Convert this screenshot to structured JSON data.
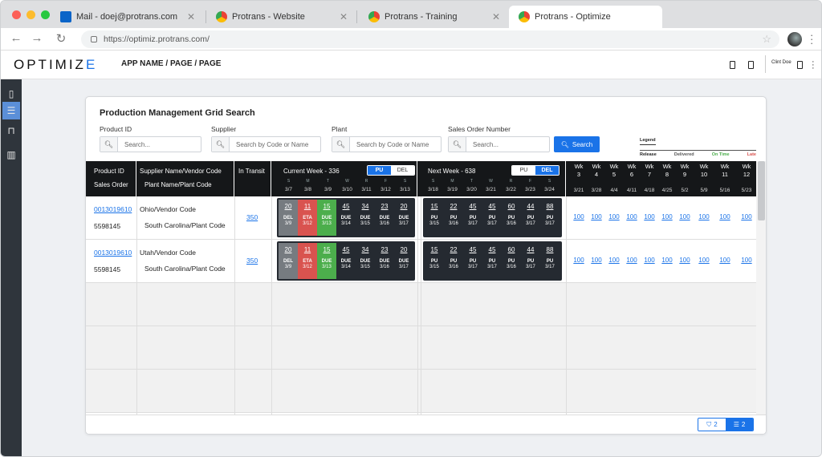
{
  "browser": {
    "tabs": [
      {
        "label": "Mail - doej@protrans.com",
        "icon": "outlook-icon"
      },
      {
        "label": "Protrans - Website",
        "icon": "chrome-icon"
      },
      {
        "label": "Protrans - Training",
        "icon": "chrome-icon"
      },
      {
        "label": "Protrans - Optimize",
        "icon": "chrome-icon",
        "active": true
      }
    ],
    "url": "https://optimiz.protrans.com/"
  },
  "app": {
    "logo": "OPTIMIZ",
    "logo_e": "E",
    "breadcrumb": "APP NAME / PAGE / PAGE",
    "user_name": "Clint Doe"
  },
  "page": {
    "title": "Production Management Grid Search",
    "filters": {
      "product_id": {
        "label": "Product ID",
        "placeholder": "Search..."
      },
      "supplier": {
        "label": "Supplier",
        "placeholder": "Search by Code or Name"
      },
      "plant": {
        "label": "Plant",
        "placeholder": "Search by Code or Name"
      },
      "sales_order": {
        "label": "Sales Order Number",
        "placeholder": "Search..."
      }
    },
    "search_button": "Search",
    "legend": {
      "title": "Legend",
      "release": "Release",
      "delivered": "Delivered",
      "on_time": "On Time",
      "late": "Late"
    }
  },
  "grid": {
    "headers": {
      "product_id": "Product ID",
      "sales_order": "Sales Order",
      "supplier": "Supplier Name/Vendor Code",
      "plant": "Plant Name/Plant Code",
      "in_transit": "In Transit",
      "current_week": "Current Week - 336",
      "next_week": "Next Week - 638",
      "pu": "PU",
      "del": "DEL"
    },
    "current_days": [
      {
        "day": "S",
        "date": "3/7"
      },
      {
        "day": "M",
        "date": "3/8"
      },
      {
        "day": "T",
        "date": "3/9"
      },
      {
        "day": "W",
        "date": "3/10"
      },
      {
        "day": "R",
        "date": "3/11"
      },
      {
        "day": "F",
        "date": "3/12"
      },
      {
        "day": "S",
        "date": "3/13"
      }
    ],
    "next_days": [
      {
        "day": "S",
        "date": "3/18"
      },
      {
        "day": "M",
        "date": "3/19"
      },
      {
        "day": "T",
        "date": "3/20"
      },
      {
        "day": "W",
        "date": "3/21"
      },
      {
        "day": "R",
        "date": "3/22"
      },
      {
        "day": "F",
        "date": "3/23"
      },
      {
        "day": "S",
        "date": "3/24"
      }
    ],
    "weeks": [
      {
        "w": "Wk",
        "n": "3",
        "date": "3/21"
      },
      {
        "w": "Wk",
        "n": "4",
        "date": "3/28"
      },
      {
        "w": "Wk",
        "n": "5",
        "date": "4/4"
      },
      {
        "w": "Wk",
        "n": "6",
        "date": "4/11"
      },
      {
        "w": "Wk",
        "n": "7",
        "date": "4/18"
      },
      {
        "w": "Wk",
        "n": "8",
        "date": "4/25"
      },
      {
        "w": "Wk",
        "n": "9",
        "date": "5/2"
      },
      {
        "w": "Wk",
        "n": "10",
        "date": "5/9"
      },
      {
        "w": "Wk",
        "n": "11",
        "date": "5/16"
      },
      {
        "w": "Wk",
        "n": "12",
        "date": "5/23"
      }
    ],
    "rows": [
      {
        "product_id": "0013019610",
        "sales_order": "5598145",
        "supplier": "Ohio/Vendor Code",
        "plant": "South Carolina/Plant Code",
        "in_transit": "350",
        "current": [
          {
            "n": "20",
            "s": "DEL",
            "d": "3/9",
            "c": "gray"
          },
          {
            "n": "11",
            "s": "ETA",
            "d": "3/12",
            "c": "red"
          },
          {
            "n": "15",
            "s": "DUE",
            "d": "3/13",
            "c": "green"
          },
          {
            "n": "45",
            "s": "DUE",
            "d": "3/14",
            "c": "dark"
          },
          {
            "n": "34",
            "s": "DUE",
            "d": "3/15",
            "c": "dark"
          },
          {
            "n": "23",
            "s": "DUE",
            "d": "3/16",
            "c": "dark"
          },
          {
            "n": "20",
            "s": "DUE",
            "d": "3/17",
            "c": "dark"
          }
        ],
        "next": [
          {
            "n": "15",
            "s": "PU",
            "d": "3/15"
          },
          {
            "n": "22",
            "s": "PU",
            "d": "3/16"
          },
          {
            "n": "45",
            "s": "PU",
            "d": "3/17"
          },
          {
            "n": "45",
            "s": "PU",
            "d": "3/17"
          },
          {
            "n": "60",
            "s": "PU",
            "d": "3/16"
          },
          {
            "n": "44",
            "s": "PU",
            "d": "3/17"
          },
          {
            "n": "88",
            "s": "PU",
            "d": "3/17"
          }
        ],
        "weeks": [
          "100",
          "100",
          "100",
          "100",
          "100",
          "100",
          "100",
          "100",
          "100",
          "100"
        ]
      },
      {
        "product_id": "0013019610",
        "sales_order": "5598145",
        "supplier": "Utah/Vendor Code",
        "plant": "South Carolina/Plant Code",
        "in_transit": "350",
        "current": [
          {
            "n": "20",
            "s": "DEL",
            "d": "3/9",
            "c": "gray"
          },
          {
            "n": "11",
            "s": "ETA",
            "d": "3/12",
            "c": "red"
          },
          {
            "n": "15",
            "s": "DUE",
            "d": "3/13",
            "c": "green"
          },
          {
            "n": "45",
            "s": "DUE",
            "d": "3/14",
            "c": "dark"
          },
          {
            "n": "34",
            "s": "DUE",
            "d": "3/15",
            "c": "dark"
          },
          {
            "n": "23",
            "s": "DUE",
            "d": "3/16",
            "c": "dark"
          },
          {
            "n": "20",
            "s": "DUE",
            "d": "3/17",
            "c": "dark"
          }
        ],
        "next": [
          {
            "n": "15",
            "s": "PU",
            "d": "3/15"
          },
          {
            "n": "22",
            "s": "PU",
            "d": "3/16"
          },
          {
            "n": "45",
            "s": "PU",
            "d": "3/17"
          },
          {
            "n": "45",
            "s": "PU",
            "d": "3/17"
          },
          {
            "n": "60",
            "s": "PU",
            "d": "3/16"
          },
          {
            "n": "44",
            "s": "PU",
            "d": "3/17"
          },
          {
            "n": "88",
            "s": "PU",
            "d": "3/17"
          }
        ],
        "weeks": [
          "100",
          "100",
          "100",
          "100",
          "100",
          "100",
          "100",
          "100",
          "100",
          "100"
        ]
      }
    ]
  },
  "pager": {
    "filter_count": "2",
    "db_count": "2"
  },
  "colors": {
    "accent": "#1a73e8",
    "late": "#d9534f",
    "on_time": "#4cae4c",
    "delivered": "#767b80",
    "grid_header": "#151719"
  }
}
